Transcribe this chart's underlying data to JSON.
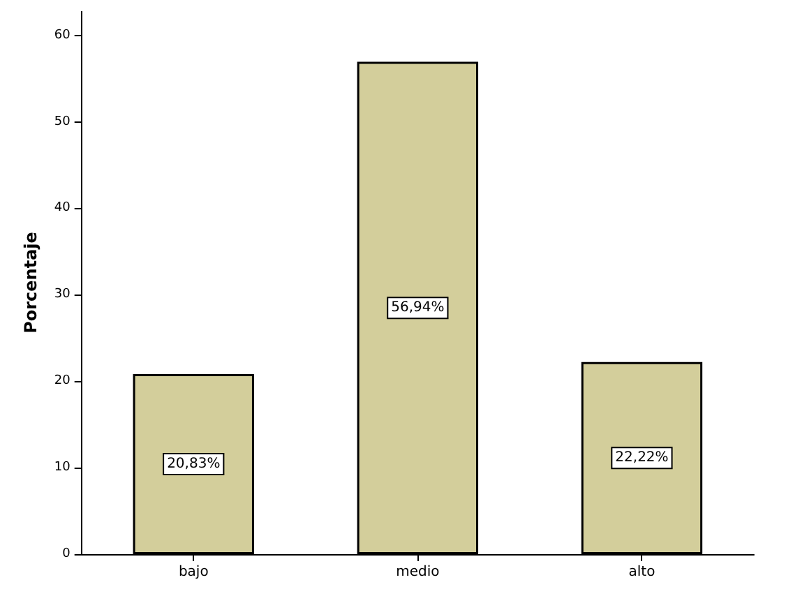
{
  "chart_data": {
    "type": "bar",
    "ylabel": "Porcentaje",
    "categories": [
      "bajo",
      "medio",
      "alto"
    ],
    "values": [
      20.83,
      56.94,
      22.22
    ],
    "value_labels": [
      "20,83%",
      "56,94%",
      "22,22%"
    ],
    "color": "#d3ce9b",
    "ylim": [
      0,
      62.8
    ],
    "yticks": [
      0,
      10,
      20,
      30,
      40,
      50,
      60
    ],
    "grid": false
  }
}
